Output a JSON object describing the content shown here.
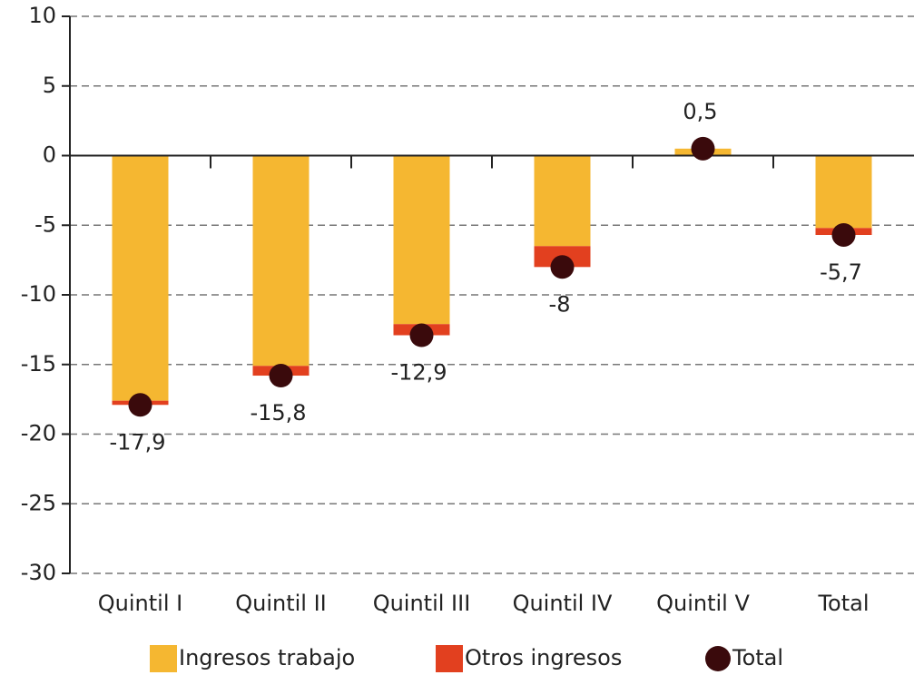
{
  "chart_data": {
    "type": "bar",
    "stacked": true,
    "categories": [
      "Quintil I",
      "Quintil II",
      "Quintil III",
      "Quintil IV",
      "Quintil V",
      "Total"
    ],
    "series": [
      {
        "name": "Ingresos trabajo",
        "color": "#f5b731",
        "values": [
          -17.6,
          -15.1,
          -12.1,
          -6.5,
          0.5,
          -5.2
        ]
      },
      {
        "name": "Otros ingresos",
        "color": "#e2401f",
        "values": [
          -0.3,
          -0.7,
          -0.8,
          -1.5,
          0,
          -0.5
        ]
      },
      {
        "name": "Total",
        "color": "#3a0a0c",
        "type": "scatter",
        "values": [
          -17.9,
          -15.8,
          -12.9,
          -8,
          0.5,
          -5.7
        ],
        "value_labels": [
          "-17,9",
          "-15,8",
          "-12,9",
          "-8",
          "0,5",
          "-5,7"
        ]
      }
    ],
    "ylim": [
      -30,
      10
    ],
    "yticks": [
      10,
      5,
      0,
      -5,
      -10,
      -15,
      -20,
      -25,
      -30
    ],
    "grid": true,
    "legend": "bottom"
  }
}
